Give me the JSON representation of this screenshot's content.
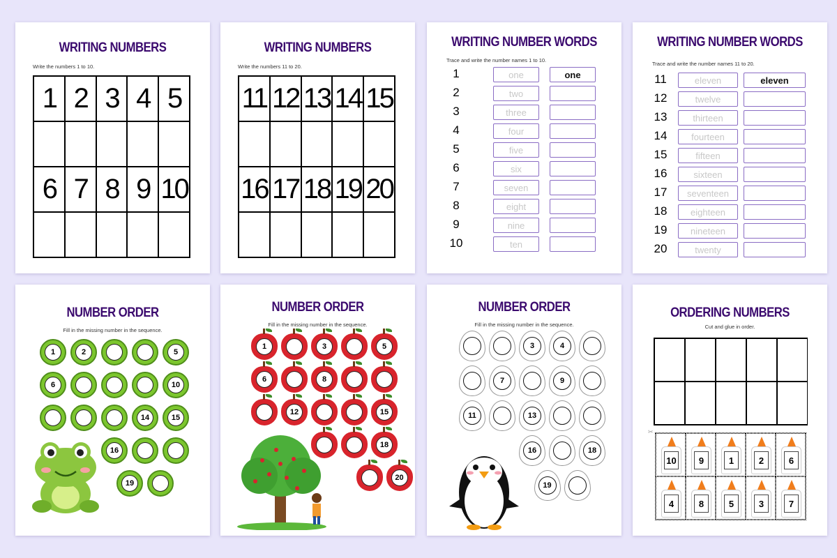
{
  "colors": {
    "background": "#e8e5fa",
    "title": "#3b0a6e",
    "word_box_border": "#8a6cc4",
    "frog_green": "#7cc62e",
    "apple_red": "#d8242c",
    "glue_orange": "#f07d1c"
  },
  "pages": [
    {
      "kind": "grid",
      "title": "WRITING NUMBERS",
      "instructions": "Write the numbers 1 to 10.",
      "rows": [
        [
          "1",
          "2",
          "3",
          "4",
          "5"
        ],
        [
          "",
          "",
          "",
          "",
          ""
        ],
        [
          "6",
          "7",
          "8",
          "9",
          "10"
        ],
        [
          "",
          "",
          "",
          "",
          ""
        ]
      ]
    },
    {
      "kind": "grid",
      "title": "WRITING NUMBERS",
      "instructions": "Write the numbers 11 to 20.",
      "rows": [
        [
          "11",
          "12",
          "13",
          "14",
          "15"
        ],
        [
          "",
          "",
          "",
          "",
          ""
        ],
        [
          "16",
          "17",
          "18",
          "19",
          "20"
        ],
        [
          "",
          "",
          "",
          "",
          ""
        ]
      ]
    },
    {
      "kind": "words",
      "title": "WRITING NUMBER WORDS",
      "instructions": "Trace and write the number names 1 to 10.",
      "numbers": [
        "1",
        "2",
        "3",
        "4",
        "5",
        "6",
        "7",
        "8",
        "9",
        "10"
      ],
      "trace": [
        "one",
        "two",
        "three",
        "four",
        "five",
        "six",
        "seven",
        "eight",
        "nine",
        "ten"
      ],
      "answers": [
        "one",
        "",
        "",
        "",
        "",
        "",
        "",
        "",
        "",
        ""
      ]
    },
    {
      "kind": "words",
      "title": "WRITING NUMBER WORDS",
      "instructions": "Trace and write the number names 11 to 20.",
      "numbers": [
        "11",
        "12",
        "13",
        "14",
        "15",
        "16",
        "17",
        "18",
        "19",
        "20"
      ],
      "trace": [
        "eleven",
        "twelve",
        "thirteen",
        "fourteen",
        "fifteen",
        "sixteen",
        "seventeen",
        "eighteen",
        "nineteen",
        "twenty"
      ],
      "answers": [
        "eleven",
        "",
        "",
        "",
        "",
        "",
        "",
        "",
        "",
        ""
      ]
    },
    {
      "kind": "sequence",
      "style": "frog",
      "illustration": "frog",
      "title": "NUMBER ORDER",
      "instructions": "Fill in the missing number in the sequence.",
      "rows": [
        [
          "1",
          "2",
          "",
          "",
          "5"
        ],
        [
          "6",
          "",
          "",
          "",
          "10"
        ],
        [
          "",
          "",
          "",
          "14",
          "15"
        ],
        [
          "16",
          "",
          ""
        ],
        [
          "19",
          ""
        ]
      ]
    },
    {
      "kind": "sequence",
      "style": "apple",
      "illustration": "apple-tree",
      "title": "NUMBER ORDER",
      "instructions": "Fill in the missing number in the sequence.",
      "rows": [
        [
          "1",
          "",
          "3",
          "",
          "5"
        ],
        [
          "6",
          "",
          "8",
          "",
          ""
        ],
        [
          "",
          "12",
          "",
          "",
          "15"
        ],
        [
          "",
          "",
          "18"
        ],
        [
          "",
          "20"
        ]
      ]
    },
    {
      "kind": "sequence",
      "style": "egg",
      "illustration": "penguin",
      "title": "NUMBER ORDER",
      "instructions": "Fill in the missing number in the sequence.",
      "rows": [
        [
          "",
          "",
          "3",
          "4",
          ""
        ],
        [
          "",
          "7",
          "",
          "9",
          ""
        ],
        [
          "11",
          "",
          "13",
          "",
          ""
        ],
        [
          "16",
          "",
          "18"
        ],
        [
          "19",
          ""
        ]
      ]
    },
    {
      "kind": "ordering",
      "title": "ORDERING NUMBERS",
      "instructions": "Cut and glue in order.",
      "cards": [
        "10",
        "9",
        "1",
        "2",
        "6",
        "4",
        "8",
        "5",
        "3",
        "7"
      ]
    }
  ]
}
